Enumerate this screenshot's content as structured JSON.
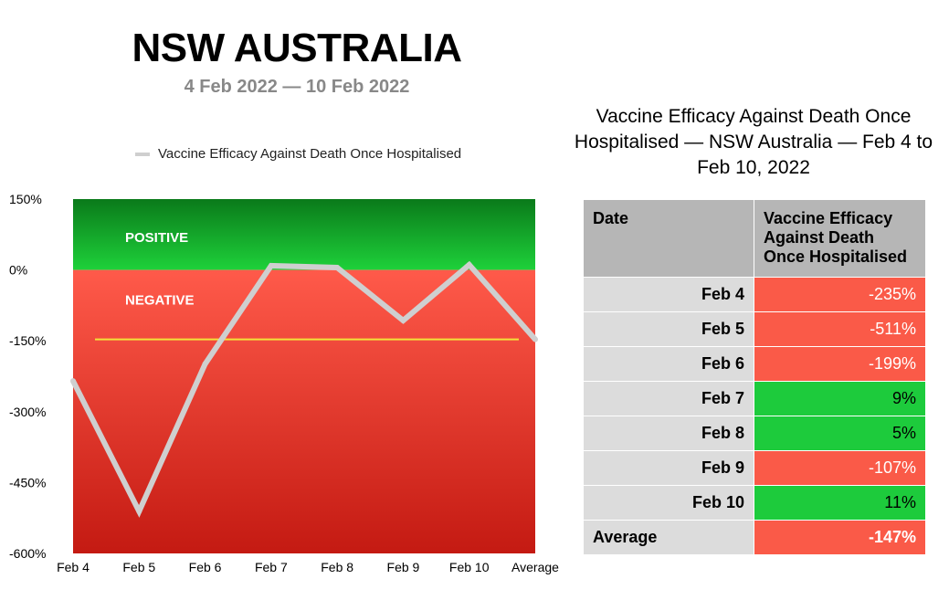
{
  "header": {
    "title": "NSW AUSTRALIA",
    "subtitle": "4 Feb 2022 — 10 Feb 2022"
  },
  "chart_data": {
    "type": "line",
    "title": "",
    "categories": [
      "Feb 4",
      "Feb 5",
      "Feb 6",
      "Feb 7",
      "Feb 8",
      "Feb 9",
      "Feb 10",
      "Average"
    ],
    "series": [
      {
        "name": "Vaccine Efficacy Against Death Once Hospitalised",
        "values": [
          -235,
          -511,
          -199,
          9,
          5,
          -107,
          11,
          -147
        ],
        "color": "#cfcfcf"
      }
    ],
    "reference_line": {
      "value": -147,
      "color": "#f2e23a"
    },
    "ylim": [
      -600,
      150
    ],
    "y_ticks": [
      150,
      0,
      -150,
      -300,
      -450,
      -600
    ],
    "y_tick_labels": [
      "150%",
      "0%",
      "-150%",
      "-300%",
      "-450%",
      "-600%"
    ],
    "bands": [
      {
        "label": "POSITIVE",
        "from": 0,
        "to": 150,
        "color_top": "#0a7a1a",
        "color_bottom": "#1ed13a"
      },
      {
        "label": "NEGATIVE",
        "from": -600,
        "to": 0,
        "color_top": "#ff5a4a",
        "color_bottom": "#c41a12"
      }
    ],
    "legend_position": "top",
    "grid": false
  },
  "table": {
    "title": "Vaccine Efficacy Against Death Once Hospitalised — NSW Australia — Feb 4 to Feb 10, 2022",
    "headers": [
      "Date",
      "Vaccine Efficacy Against Death Once Hospitalised"
    ],
    "rows": [
      {
        "date": "Feb 4",
        "value": "-235%",
        "status": "negative"
      },
      {
        "date": "Feb 5",
        "value": "-511%",
        "status": "negative"
      },
      {
        "date": "Feb 6",
        "value": "-199%",
        "status": "negative"
      },
      {
        "date": "Feb 7",
        "value": "9%",
        "status": "positive"
      },
      {
        "date": "Feb 8",
        "value": "5%",
        "status": "positive"
      },
      {
        "date": "Feb 9",
        "value": "-107%",
        "status": "negative"
      },
      {
        "date": "Feb 10",
        "value": "11%",
        "status": "positive"
      },
      {
        "date": "Average",
        "value": "-147%",
        "status": "negative"
      }
    ]
  }
}
